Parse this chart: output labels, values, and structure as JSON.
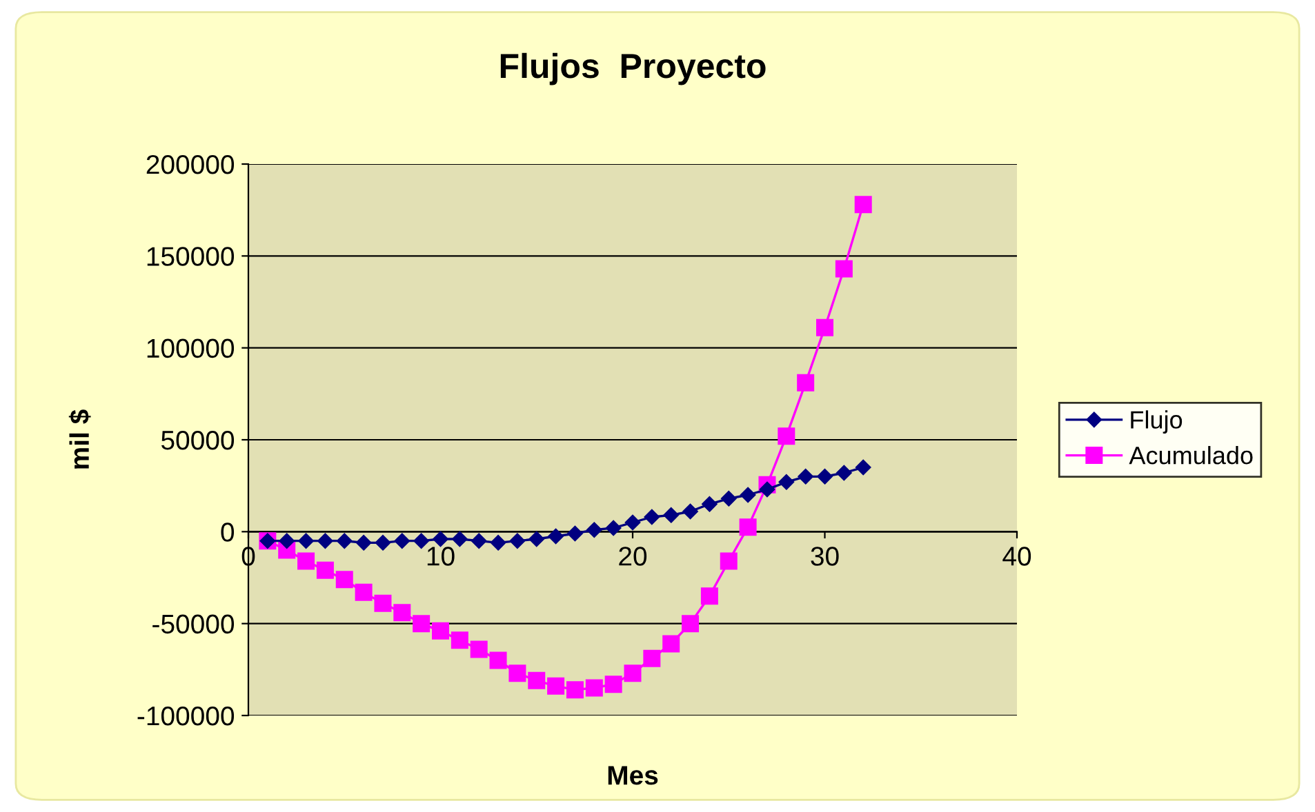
{
  "chart_data": {
    "type": "line",
    "title": "Flujos  Proyecto",
    "xlabel": "Mes",
    "ylabel": "mil $",
    "x": [
      1,
      2,
      3,
      4,
      5,
      6,
      7,
      8,
      9,
      10,
      11,
      12,
      13,
      14,
      15,
      16,
      17,
      18,
      19,
      20,
      21,
      22,
      23,
      24,
      25,
      26,
      27,
      28,
      29,
      30,
      31,
      32
    ],
    "series": [
      {
        "name": "Flujo",
        "color": "#000080",
        "marker": "diamond",
        "values": [
          -5000,
          -5000,
          -5000,
          -5000,
          -5000,
          -6000,
          -6000,
          -5000,
          -5000,
          -4000,
          -4000,
          -5000,
          -6000,
          -5000,
          -4000,
          -2500,
          -1000,
          1000,
          2000,
          5000,
          8000,
          9000,
          11000,
          15000,
          18000,
          20000,
          23000,
          27000,
          30000,
          30000,
          32000,
          35000
        ]
      },
      {
        "name": "Acumulado",
        "color": "#ff00ff",
        "marker": "square",
        "values": [
          -5000,
          -10000,
          -16000,
          -21000,
          -26000,
          -33000,
          -39000,
          -44000,
          -50000,
          -54000,
          -59000,
          -64000,
          -70000,
          -77000,
          -81000,
          -84000,
          -86000,
          -85000,
          -83000,
          -77000,
          -69000,
          -61000,
          -50000,
          -35000,
          -16000,
          2500,
          25500,
          52000,
          81000,
          111000,
          143000,
          178000
        ]
      }
    ],
    "xlim": [
      0,
      40
    ],
    "xticks": [
      0,
      10,
      20,
      30,
      40
    ],
    "ylim": [
      -100000,
      200000
    ],
    "yticks": [
      -100000,
      -50000,
      0,
      50000,
      100000,
      150000,
      200000
    ],
    "grid": "y",
    "legend": "right",
    "line_style": "solid"
  }
}
